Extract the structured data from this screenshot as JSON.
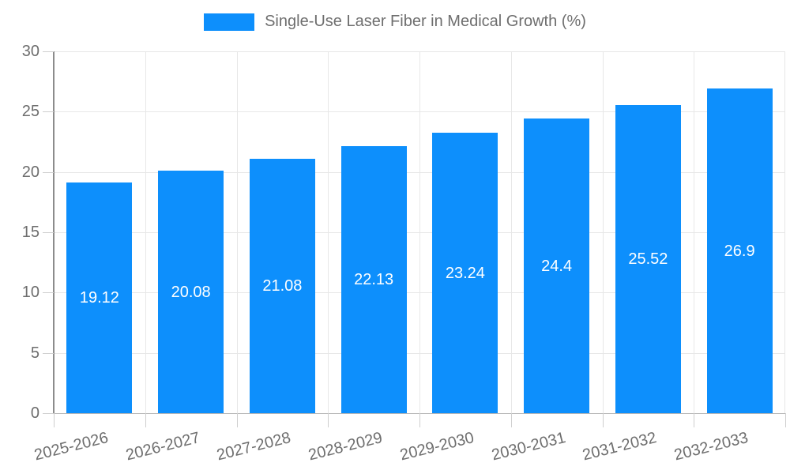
{
  "legend": {
    "label": "Single-Use Laser Fiber in Medical Growth (%)"
  },
  "chart_data": {
    "type": "bar",
    "title": "Single-Use Laser Fiber in Medical Growth (%)",
    "series_name": "Single-Use Laser Fiber in Medical Growth (%)",
    "categories": [
      "2025-2026",
      "2026-2027",
      "2027-2028",
      "2028-2029",
      "2029-2030",
      "2030-2031",
      "2031-2032",
      "2032-2033"
    ],
    "values": [
      19.12,
      20.08,
      21.08,
      22.13,
      23.24,
      24.4,
      25.52,
      26.9
    ],
    "value_labels": [
      "19.12",
      "20.08",
      "21.08",
      "22.13",
      "23.24",
      "24.4",
      "25.52",
      "26.9"
    ],
    "xlabel": "",
    "ylabel": "",
    "ylim": [
      0,
      30
    ],
    "yticks": [
      0,
      5,
      10,
      15,
      20,
      25,
      30
    ],
    "grid": true,
    "legend_position": "top"
  },
  "theme": {
    "bar_color": "#0D8FFC",
    "bar_label_color": "#FFFFFF",
    "axis_text_color": "#6E6E6E",
    "legend_text_color": "#6E6E6E",
    "gridline_color": "#E7E7E7",
    "y_axis_line_color": "#8C8C8C",
    "x_axis_line_color": "#B6B6B6",
    "tick_color": "#CFCFCF",
    "background": "#FFFFFF"
  }
}
